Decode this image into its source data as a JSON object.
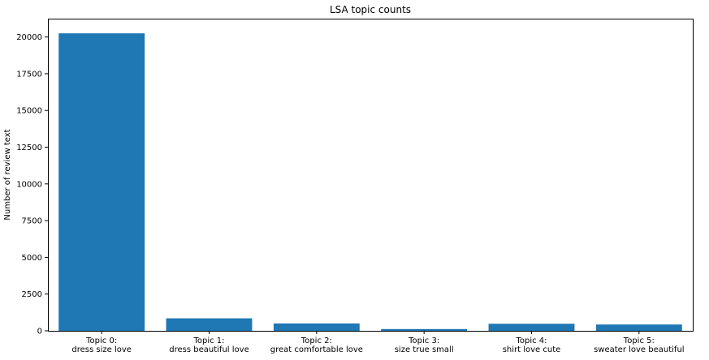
{
  "chart_data": {
    "type": "bar",
    "title": "LSA topic counts",
    "xlabel": "",
    "ylabel": "Number of review text",
    "categories": [
      [
        "Topic 0:",
        "dress size love"
      ],
      [
        "Topic 1:",
        "dress beautiful love"
      ],
      [
        "Topic 2:",
        "great comfortable love"
      ],
      [
        "Topic 3:",
        "size true small"
      ],
      [
        "Topic 4:",
        "shirt love cute"
      ],
      [
        "Topic 5:",
        "sweater love beautiful"
      ]
    ],
    "values": [
      20250,
      850,
      500,
      120,
      480,
      430
    ],
    "ylim": [
      0,
      21250
    ],
    "yticks": [
      0,
      2500,
      5000,
      7500,
      10000,
      12500,
      15000,
      17500,
      20000
    ],
    "bar_color": "#1f77b4",
    "grid": false,
    "legend": "none"
  }
}
